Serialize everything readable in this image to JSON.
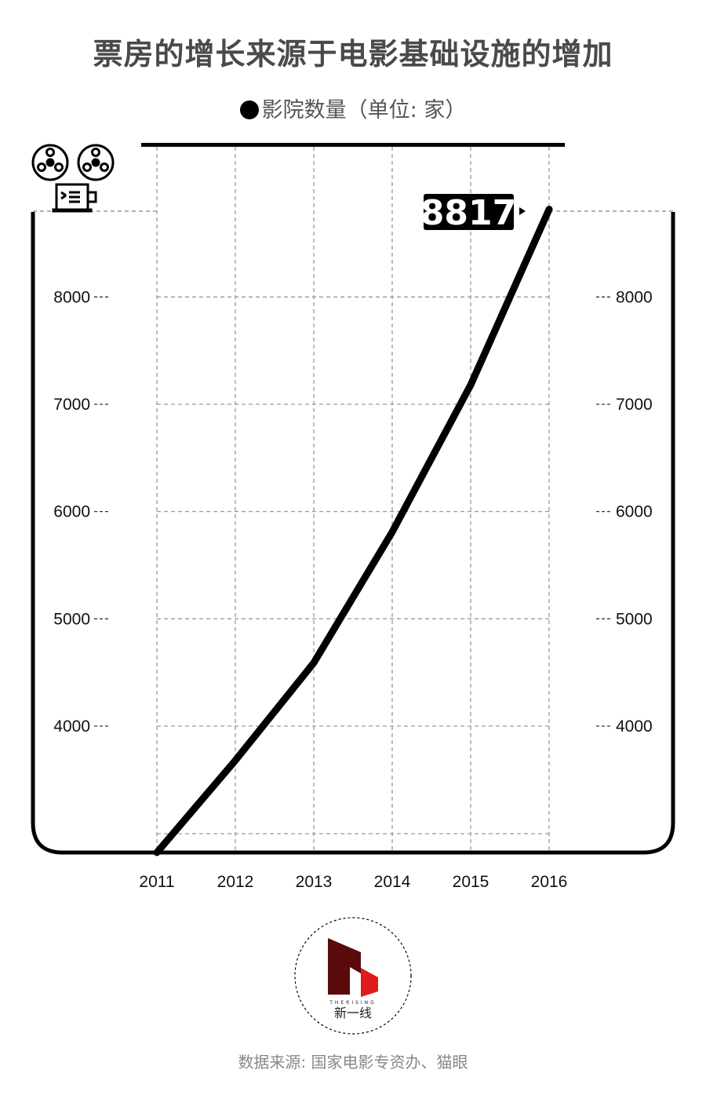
{
  "title": "票房的增长来源于电影基础设施的增加",
  "legend": {
    "label": "影院数量（单位: 家）"
  },
  "source": "数据来源: 国家电影专资办、猫眼",
  "logo": {
    "small_text": "THERISING",
    "text": "新一线"
  },
  "colors": {
    "line": "#000000",
    "grid": "#999999",
    "title": "#4a4a4a",
    "source": "#888888",
    "logo_red": "#e01b1b",
    "logo_dark": "#5a0a0a"
  },
  "icons": [
    "film-projector-icon"
  ],
  "chart_data": {
    "type": "line",
    "title": "票房的增长来源于电影基础设施的增加",
    "x": [
      "2011",
      "2012",
      "2013",
      "2014",
      "2015",
      "2016"
    ],
    "series": [
      {
        "name": "影院数量（单位: 家）",
        "values": [
          2800,
          3680,
          4590,
          5810,
          7180,
          8817
        ]
      }
    ],
    "y_ticks": [
      4000,
      5000,
      6000,
      7000,
      8000
    ],
    "y_tick_labels": [
      "4000",
      "5000",
      "6000",
      "7000",
      "8000"
    ],
    "ylim": [
      2800,
      8817
    ],
    "highlight": {
      "x": "2016",
      "value_label": "8817"
    },
    "grid": true,
    "legend_position": "top-center"
  }
}
